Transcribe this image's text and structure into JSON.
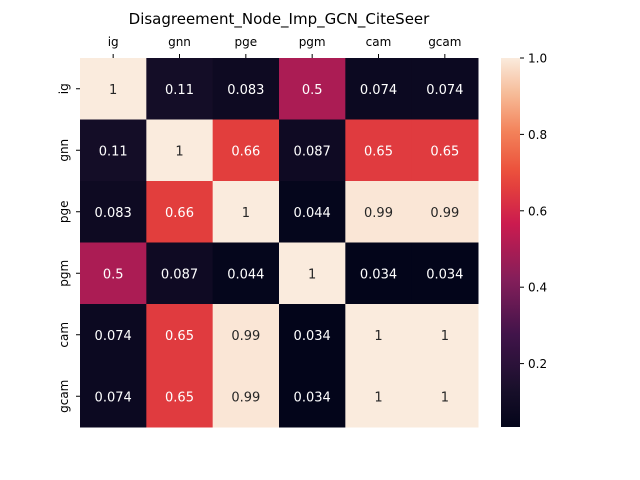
{
  "chart_data": {
    "type": "heatmap",
    "title": "Disagreement_Node_Imp_GCN_CiteSeer",
    "x_labels": [
      "ig",
      "gnn",
      "pge",
      "pgm",
      "cam",
      "gcam"
    ],
    "y_labels": [
      "ig",
      "gnn",
      "pge",
      "pgm",
      "cam",
      "gcam"
    ],
    "x_tick_position": "top",
    "values": [
      [
        1,
        0.11,
        0.083,
        0.5,
        0.074,
        0.074
      ],
      [
        0.11,
        1,
        0.66,
        0.087,
        0.65,
        0.65
      ],
      [
        0.083,
        0.66,
        1,
        0.044,
        0.99,
        0.99
      ],
      [
        0.5,
        0.087,
        0.044,
        1,
        0.034,
        0.034
      ],
      [
        0.074,
        0.65,
        0.99,
        0.034,
        1,
        1
      ],
      [
        0.074,
        0.65,
        0.99,
        0.034,
        1,
        1
      ]
    ],
    "annotations": [
      [
        "1",
        "0.11",
        "0.083",
        "0.5",
        "0.074",
        "0.074"
      ],
      [
        "0.11",
        "1",
        "0.66",
        "0.087",
        "0.65",
        "0.65"
      ],
      [
        "0.083",
        "0.66",
        "1",
        "0.044",
        "0.99",
        "0.99"
      ],
      [
        "0.5",
        "0.087",
        "0.044",
        "1",
        "0.034",
        "0.034"
      ],
      [
        "0.074",
        "0.65",
        "0.99",
        "0.034",
        "1",
        "1"
      ],
      [
        "0.074",
        "0.65",
        "0.99",
        "0.034",
        "1",
        "1"
      ]
    ],
    "colorbar": {
      "min": 0.034,
      "max": 1.0,
      "ticks": [
        0.2,
        0.4,
        0.6,
        0.8,
        1.0
      ],
      "tick_labels": [
        "0.2",
        "0.4",
        "0.6",
        "0.8",
        "1.0"
      ],
      "colormap": "rocket"
    }
  }
}
